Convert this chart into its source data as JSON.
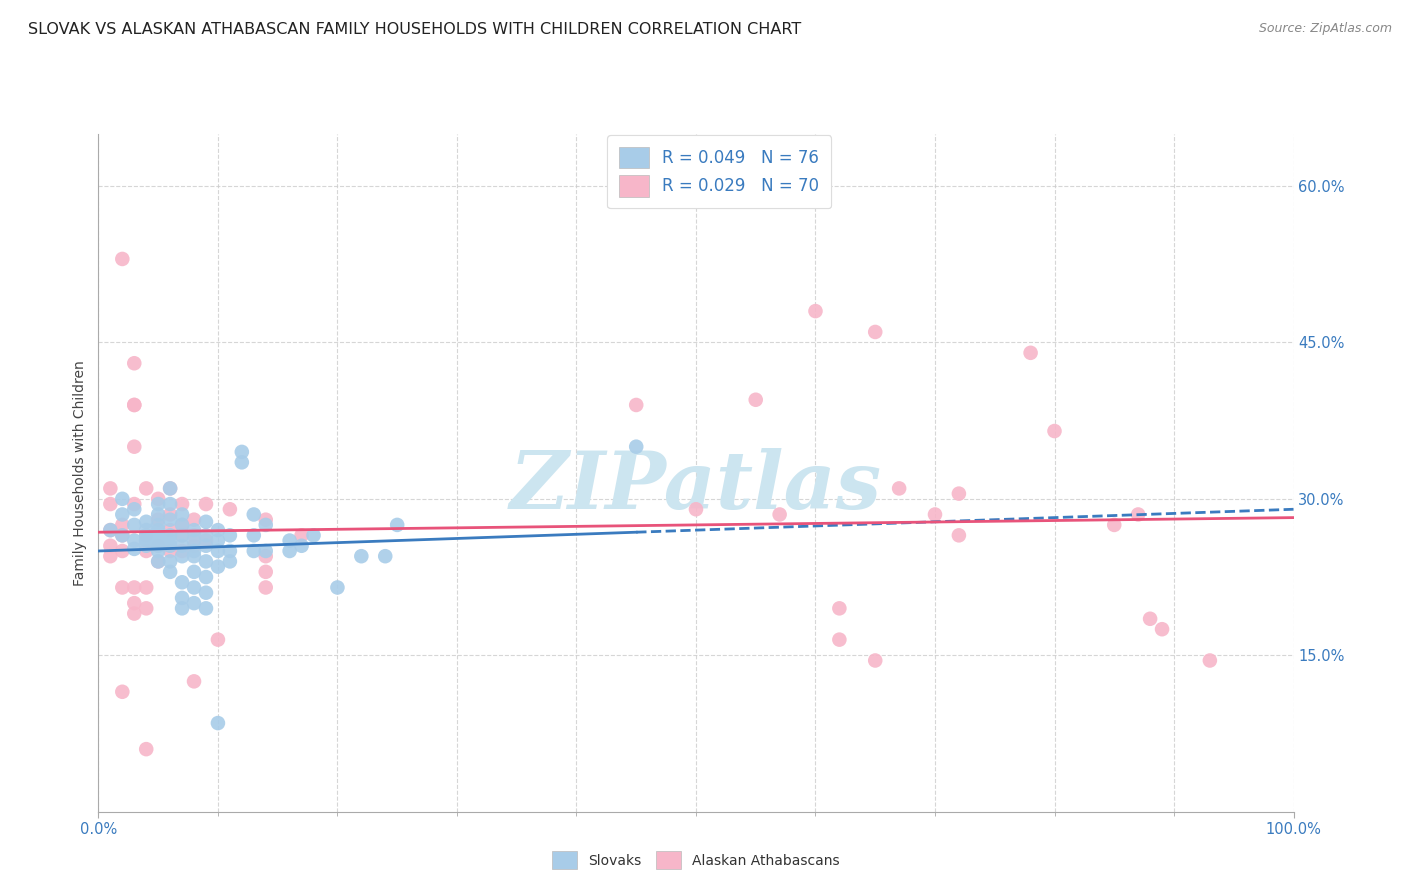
{
  "title": "SLOVAK VS ALASKAN ATHABASCAN FAMILY HOUSEHOLDS WITH CHILDREN CORRELATION CHART",
  "source": "Source: ZipAtlas.com",
  "ylabel": "Family Households with Children",
  "xlabel": "",
  "xlim": [
    0.0,
    1.0
  ],
  "ylim": [
    0.0,
    0.65
  ],
  "yticks": [
    0.15,
    0.3,
    0.45,
    0.6
  ],
  "yticklabels": [
    "15.0%",
    "30.0%",
    "45.0%",
    "60.0%"
  ],
  "legend_r1": "R = 0.049   N = 76",
  "legend_r2": "R = 0.029   N = 70",
  "blue_color": "#a8cce8",
  "pink_color": "#f7b6c9",
  "blue_line_color": "#3a7bbf",
  "pink_line_color": "#e8537a",
  "title_fontsize": 11.5,
  "axis_label_fontsize": 10,
  "tick_fontsize": 10.5,
  "legend_fontsize": 12,
  "watermark": "ZIPatlas",
  "slovaks_label": "Slovaks",
  "athabascan_label": "Alaskan Athabascans",
  "blue_scatter": [
    [
      0.01,
      0.27
    ],
    [
      0.02,
      0.285
    ],
    [
      0.02,
      0.265
    ],
    [
      0.02,
      0.3
    ],
    [
      0.03,
      0.275
    ],
    [
      0.03,
      0.26
    ],
    [
      0.03,
      0.29
    ],
    [
      0.03,
      0.252
    ],
    [
      0.04,
      0.278
    ],
    [
      0.04,
      0.26
    ],
    [
      0.04,
      0.265
    ],
    [
      0.04,
      0.255
    ],
    [
      0.04,
      0.27
    ],
    [
      0.05,
      0.275
    ],
    [
      0.05,
      0.26
    ],
    [
      0.05,
      0.265
    ],
    [
      0.05,
      0.255
    ],
    [
      0.05,
      0.24
    ],
    [
      0.05,
      0.295
    ],
    [
      0.05,
      0.27
    ],
    [
      0.05,
      0.285
    ],
    [
      0.05,
      0.25
    ],
    [
      0.06,
      0.28
    ],
    [
      0.06,
      0.265
    ],
    [
      0.06,
      0.26
    ],
    [
      0.06,
      0.255
    ],
    [
      0.06,
      0.24
    ],
    [
      0.06,
      0.23
    ],
    [
      0.06,
      0.295
    ],
    [
      0.06,
      0.31
    ],
    [
      0.07,
      0.275
    ],
    [
      0.07,
      0.255
    ],
    [
      0.07,
      0.265
    ],
    [
      0.07,
      0.245
    ],
    [
      0.07,
      0.22
    ],
    [
      0.07,
      0.205
    ],
    [
      0.07,
      0.195
    ],
    [
      0.07,
      0.285
    ],
    [
      0.08,
      0.27
    ],
    [
      0.08,
      0.26
    ],
    [
      0.08,
      0.25
    ],
    [
      0.08,
      0.245
    ],
    [
      0.08,
      0.23
    ],
    [
      0.08,
      0.215
    ],
    [
      0.08,
      0.2
    ],
    [
      0.09,
      0.278
    ],
    [
      0.09,
      0.265
    ],
    [
      0.09,
      0.255
    ],
    [
      0.09,
      0.24
    ],
    [
      0.09,
      0.225
    ],
    [
      0.09,
      0.21
    ],
    [
      0.09,
      0.195
    ],
    [
      0.1,
      0.27
    ],
    [
      0.1,
      0.26
    ],
    [
      0.1,
      0.25
    ],
    [
      0.1,
      0.235
    ],
    [
      0.11,
      0.265
    ],
    [
      0.11,
      0.25
    ],
    [
      0.11,
      0.24
    ],
    [
      0.12,
      0.345
    ],
    [
      0.12,
      0.335
    ],
    [
      0.13,
      0.285
    ],
    [
      0.13,
      0.265
    ],
    [
      0.13,
      0.25
    ],
    [
      0.14,
      0.275
    ],
    [
      0.14,
      0.25
    ],
    [
      0.16,
      0.26
    ],
    [
      0.16,
      0.25
    ],
    [
      0.17,
      0.255
    ],
    [
      0.18,
      0.265
    ],
    [
      0.2,
      0.215
    ],
    [
      0.22,
      0.245
    ],
    [
      0.24,
      0.245
    ],
    [
      0.25,
      0.275
    ],
    [
      0.45,
      0.35
    ],
    [
      0.1,
      0.085
    ]
  ],
  "pink_scatter": [
    [
      0.01,
      0.27
    ],
    [
      0.01,
      0.255
    ],
    [
      0.01,
      0.245
    ],
    [
      0.01,
      0.295
    ],
    [
      0.01,
      0.31
    ],
    [
      0.02,
      0.53
    ],
    [
      0.02,
      0.275
    ],
    [
      0.02,
      0.265
    ],
    [
      0.02,
      0.25
    ],
    [
      0.02,
      0.215
    ],
    [
      0.02,
      0.115
    ],
    [
      0.03,
      0.39
    ],
    [
      0.03,
      0.295
    ],
    [
      0.03,
      0.39
    ],
    [
      0.03,
      0.215
    ],
    [
      0.03,
      0.2
    ],
    [
      0.03,
      0.19
    ],
    [
      0.03,
      0.35
    ],
    [
      0.03,
      0.43
    ],
    [
      0.04,
      0.31
    ],
    [
      0.04,
      0.265
    ],
    [
      0.04,
      0.25
    ],
    [
      0.04,
      0.215
    ],
    [
      0.04,
      0.195
    ],
    [
      0.04,
      0.06
    ],
    [
      0.05,
      0.3
    ],
    [
      0.05,
      0.28
    ],
    [
      0.05,
      0.255
    ],
    [
      0.05,
      0.24
    ],
    [
      0.06,
      0.31
    ],
    [
      0.06,
      0.285
    ],
    [
      0.06,
      0.27
    ],
    [
      0.06,
      0.25
    ],
    [
      0.07,
      0.295
    ],
    [
      0.07,
      0.275
    ],
    [
      0.07,
      0.265
    ],
    [
      0.07,
      0.25
    ],
    [
      0.08,
      0.28
    ],
    [
      0.08,
      0.265
    ],
    [
      0.08,
      0.255
    ],
    [
      0.08,
      0.125
    ],
    [
      0.09,
      0.295
    ],
    [
      0.09,
      0.26
    ],
    [
      0.1,
      0.165
    ],
    [
      0.11,
      0.29
    ],
    [
      0.14,
      0.28
    ],
    [
      0.14,
      0.245
    ],
    [
      0.14,
      0.23
    ],
    [
      0.14,
      0.215
    ],
    [
      0.17,
      0.265
    ],
    [
      0.45,
      0.39
    ],
    [
      0.5,
      0.29
    ],
    [
      0.55,
      0.395
    ],
    [
      0.57,
      0.285
    ],
    [
      0.6,
      0.48
    ],
    [
      0.62,
      0.195
    ],
    [
      0.62,
      0.165
    ],
    [
      0.65,
      0.145
    ],
    [
      0.65,
      0.46
    ],
    [
      0.67,
      0.31
    ],
    [
      0.7,
      0.285
    ],
    [
      0.72,
      0.305
    ],
    [
      0.72,
      0.265
    ],
    [
      0.78,
      0.44
    ],
    [
      0.8,
      0.365
    ],
    [
      0.85,
      0.275
    ],
    [
      0.87,
      0.285
    ],
    [
      0.88,
      0.185
    ],
    [
      0.89,
      0.175
    ],
    [
      0.93,
      0.145
    ]
  ],
  "blue_line_solid": [
    [
      0.0,
      0.25
    ],
    [
      0.45,
      0.268
    ]
  ],
  "blue_line_dashed": [
    [
      0.45,
      0.268
    ],
    [
      1.0,
      0.29
    ]
  ],
  "pink_line": [
    [
      0.0,
      0.268
    ],
    [
      1.0,
      0.282
    ]
  ],
  "grid_color": "#cccccc",
  "background_color": "#ffffff",
  "watermark_color": "#cce5f0",
  "yticklabel_color": "#3a7bbf",
  "xticklabel_color": "#3a7bbf"
}
